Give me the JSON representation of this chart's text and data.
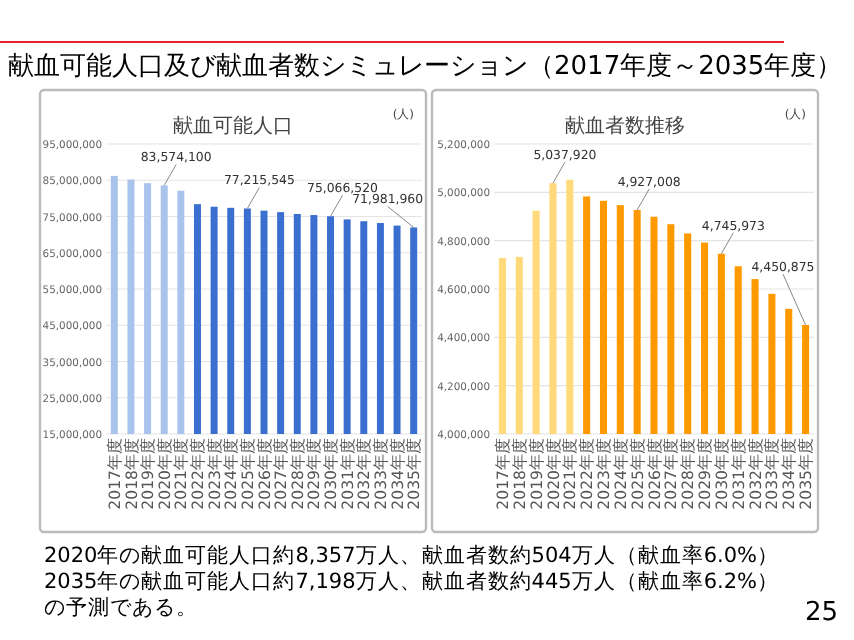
{
  "chart_data": [
    {
      "type": "other",
      "title": "献血可能人口及び献血者数シミュレーション（2017年度～2035年度）",
      "annotations": [
        "2020年の献血可能人口約8,357万人、献血者数約504万人（献血率6.0%）",
        "2035年の献血可能人口約7,198万人、献血者数約445万人（献血率6.2%）",
        "の予測である。",
        "25"
      ]
    },
    {
      "type": "bar",
      "title": "献血可能人口",
      "ylabel": "(人)",
      "grid": "y",
      "categories": [
        "2017年度",
        "2018年度",
        "2019年度",
        "2020年度",
        "2021年度",
        "2022年度",
        "2023年度",
        "2024年度",
        "2025年度",
        "2026年度",
        "2027年度",
        "2028年度",
        "2029年度",
        "2030年度",
        "2031年度",
        "2032年度",
        "2033年度",
        "2034年度",
        "2035年度"
      ],
      "values": [
        86200000,
        85200000,
        84200000,
        83574100,
        82100000,
        78400000,
        77700000,
        77400000,
        77215545,
        76600000,
        76200000,
        75700000,
        75400000,
        75066520,
        74200000,
        73700000,
        73200000,
        72500000,
        71981960
      ],
      "value_labels": [
        null,
        null,
        null,
        "83,574,100",
        null,
        null,
        null,
        null,
        "77,215,545",
        null,
        null,
        null,
        null,
        "75,066,520",
        null,
        null,
        null,
        null,
        "71,981,960"
      ],
      "colors": [
        "#a9c4ec",
        "#a9c4ec",
        "#a9c4ec",
        "#a9c4ec",
        "#a9c4ec",
        "#3a6fcf",
        "#3a6fcf",
        "#3a6fcf",
        "#3a6fcf",
        "#3a6fcf",
        "#3a6fcf",
        "#3a6fcf",
        "#3a6fcf",
        "#3a6fcf",
        "#3a6fcf",
        "#3a6fcf",
        "#3a6fcf",
        "#3a6fcf",
        "#3a6fcf"
      ],
      "ylim": [
        15000000,
        95000000
      ],
      "yticks": [
        {
          "value": 15000000,
          "label": "15,000,000"
        },
        {
          "value": 25000000,
          "label": "25,000,000"
        },
        {
          "value": 35000000,
          "label": "35,000,000"
        },
        {
          "value": 45000000,
          "label": "45,000,000"
        },
        {
          "value": 55000000,
          "label": "55,000,000"
        },
        {
          "value": 65000000,
          "label": "65,000,000"
        },
        {
          "value": 75000000,
          "label": "75,000,000"
        },
        {
          "value": 85000000,
          "label": "85,000,000"
        },
        {
          "value": 95000000,
          "label": "95,000,000"
        }
      ]
    },
    {
      "type": "bar",
      "title": "献血者数推移",
      "ylabel": "(人)",
      "grid": "y",
      "categories": [
        "2017年度",
        "2018年度",
        "2019年度",
        "2020年度",
        "2021年度",
        "2022年度",
        "2023年度",
        "2024年度",
        "2025年度",
        "2026年度",
        "2027年度",
        "2028年度",
        "2029年度",
        "2030年度",
        "2031年度",
        "2032年度",
        "2033年度",
        "2034年度",
        "2035年度"
      ],
      "values": [
        4728000,
        4733000,
        4924000,
        5037920,
        5052000,
        4983000,
        4965000,
        4947000,
        4927008,
        4899000,
        4868000,
        4830000,
        4792000,
        4745973,
        4694000,
        4641000,
        4580000,
        4518000,
        4450875
      ],
      "value_labels": [
        null,
        null,
        null,
        "5,037,920",
        null,
        null,
        null,
        null,
        "4,927,008",
        null,
        null,
        null,
        null,
        "4,745,973",
        null,
        null,
        null,
        null,
        "4,450,875"
      ],
      "colors": [
        "#ffd97a",
        "#ffd97a",
        "#ffd97a",
        "#ffd97a",
        "#ffd97a",
        "#ff9900",
        "#ff9900",
        "#ff9900",
        "#ff9900",
        "#ff9900",
        "#ff9900",
        "#ff9900",
        "#ff9900",
        "#ff9900",
        "#ff9900",
        "#ff9900",
        "#ff9900",
        "#ff9900",
        "#ff9900"
      ],
      "ylim": [
        4000000,
        5200000
      ],
      "yticks": [
        {
          "value": 4000000,
          "label": "4,000,000"
        },
        {
          "value": 4200000,
          "label": "4,200,000"
        },
        {
          "value": 4400000,
          "label": "4,400,000"
        },
        {
          "value": 4600000,
          "label": "4,600,000"
        },
        {
          "value": 4800000,
          "label": "4,800,000"
        },
        {
          "value": 5000000,
          "label": "5,000,000"
        },
        {
          "value": 5200000,
          "label": "5,200,000"
        }
      ]
    }
  ]
}
